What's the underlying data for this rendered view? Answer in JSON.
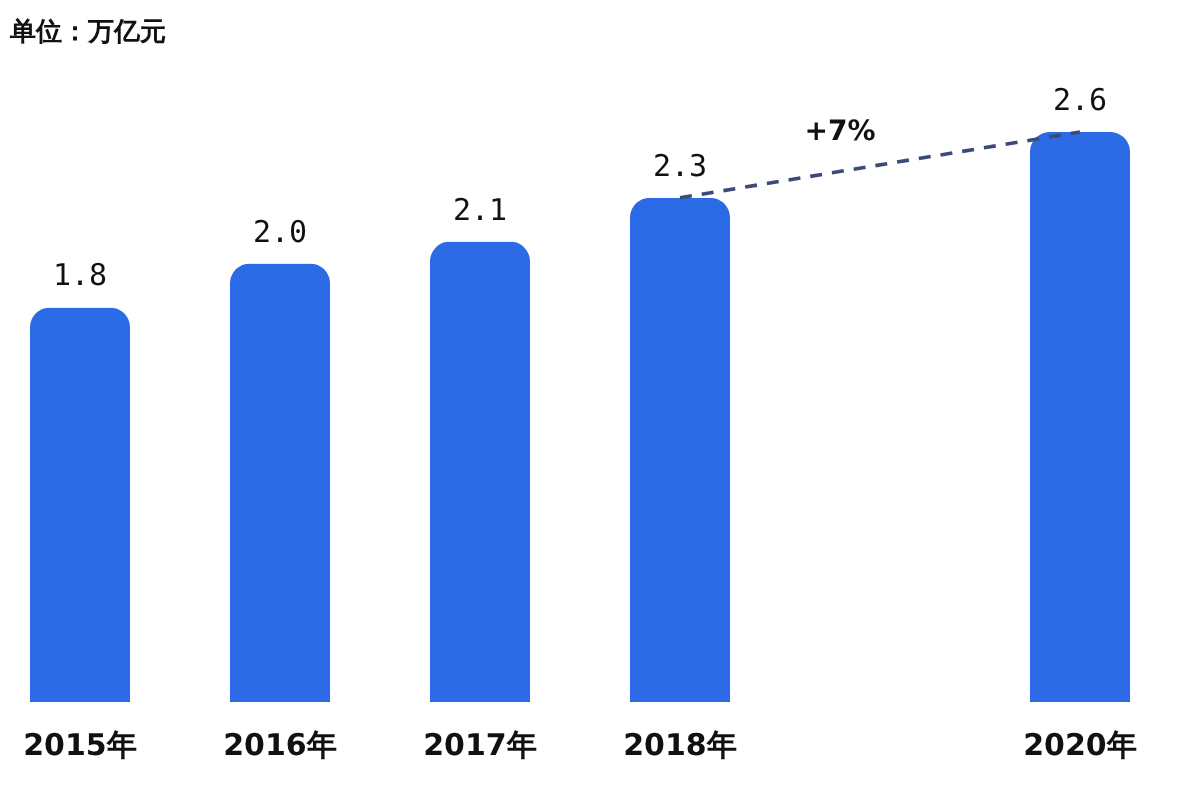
{
  "chart_data": {
    "type": "bar",
    "subtitle": "单位：万亿元",
    "categories": [
      "2015年",
      "2016年",
      "2017年",
      "2018年",
      null,
      "2020年"
    ],
    "series": [
      {
        "color": "#2b6be6",
        "values": [
          1.8,
          2.0,
          2.1,
          2.3,
          null,
          2.6
        ],
        "value_labels": [
          "1.8",
          "2.0",
          "2.1",
          "2.3",
          null,
          "2.6"
        ]
      },
      {
        "type": "line",
        "color": "#3b4a78",
        "line_style": "dashed",
        "marker": "none",
        "x": [
          "2018年",
          "2020年"
        ],
        "values": [
          2.3,
          2.6
        ]
      }
    ],
    "annotations": [
      "+7%"
    ],
    "tick_labels": "x"
  }
}
